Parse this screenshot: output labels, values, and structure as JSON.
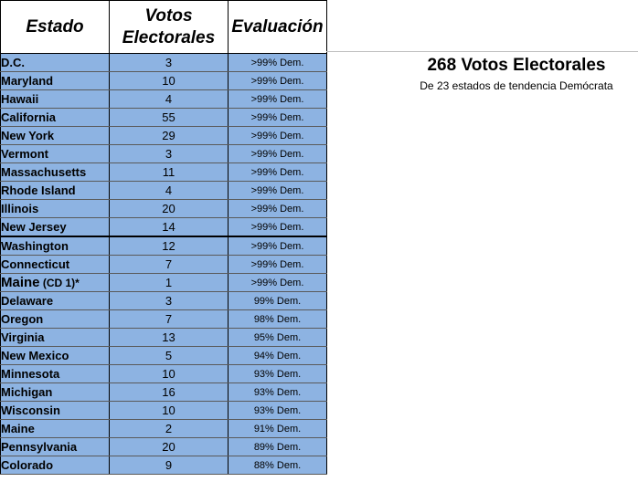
{
  "table": {
    "headers": {
      "estado": "Estado",
      "votos_line1": "Votos",
      "votos_line2": "Electorales",
      "evaluacion": "Evaluación"
    },
    "rows": [
      {
        "state": "D.C.",
        "votes": "3",
        "rating": ">99% Dem."
      },
      {
        "state": "Maryland",
        "votes": "10",
        "rating": ">99% Dem."
      },
      {
        "state": "Hawaii",
        "votes": "4",
        "rating": ">99% Dem."
      },
      {
        "state": "California",
        "votes": "55",
        "rating": ">99% Dem."
      },
      {
        "state": "New York",
        "votes": "29",
        "rating": ">99% Dem."
      },
      {
        "state": "Vermont",
        "votes": "3",
        "rating": ">99% Dem."
      },
      {
        "state": "Massachusetts",
        "votes": "11",
        "rating": ">99% Dem."
      },
      {
        "state": "Rhode Island",
        "votes": "4",
        "rating": ">99% Dem."
      },
      {
        "state": "Illinois",
        "votes": "20",
        "rating": ">99% Dem."
      },
      {
        "state": "New Jersey",
        "votes": "14",
        "rating": ">99% Dem."
      },
      {
        "state": "Washington",
        "votes": "12",
        "rating": ">99% Dem."
      },
      {
        "state": "Connecticut",
        "votes": "7",
        "rating": ">99% Dem."
      },
      {
        "state": "Maine",
        "state_suffix": " (CD 1)*",
        "votes": "1",
        "rating": ">99% Dem."
      },
      {
        "state": "Delaware",
        "votes": "3",
        "rating": "99% Dem."
      },
      {
        "state": "Oregon",
        "votes": "7",
        "rating": "98% Dem."
      },
      {
        "state": "Virginia",
        "votes": "13",
        "rating": "95% Dem."
      },
      {
        "state": "New Mexico",
        "votes": "5",
        "rating": "94% Dem."
      },
      {
        "state": "Minnesota",
        "votes": "10",
        "rating": "93% Dem."
      },
      {
        "state": "Michigan",
        "votes": "16",
        "rating": "93% Dem."
      },
      {
        "state": "Wisconsin",
        "votes": "10",
        "rating": "93% Dem."
      },
      {
        "state": "Maine",
        "votes": "2",
        "rating": "91% Dem."
      },
      {
        "state": "Pennsylvania",
        "votes": "20",
        "rating": "89% Dem."
      },
      {
        "state": "Colorado",
        "votes": "9",
        "rating": "88% Dem."
      }
    ]
  },
  "summary": {
    "title": "268 Votos Electorales",
    "subtitle": "De 23 estados de tendencia Demócrata"
  },
  "colors": {
    "row_fill": "#8db3e2",
    "header_fill": "#ffffff"
  }
}
